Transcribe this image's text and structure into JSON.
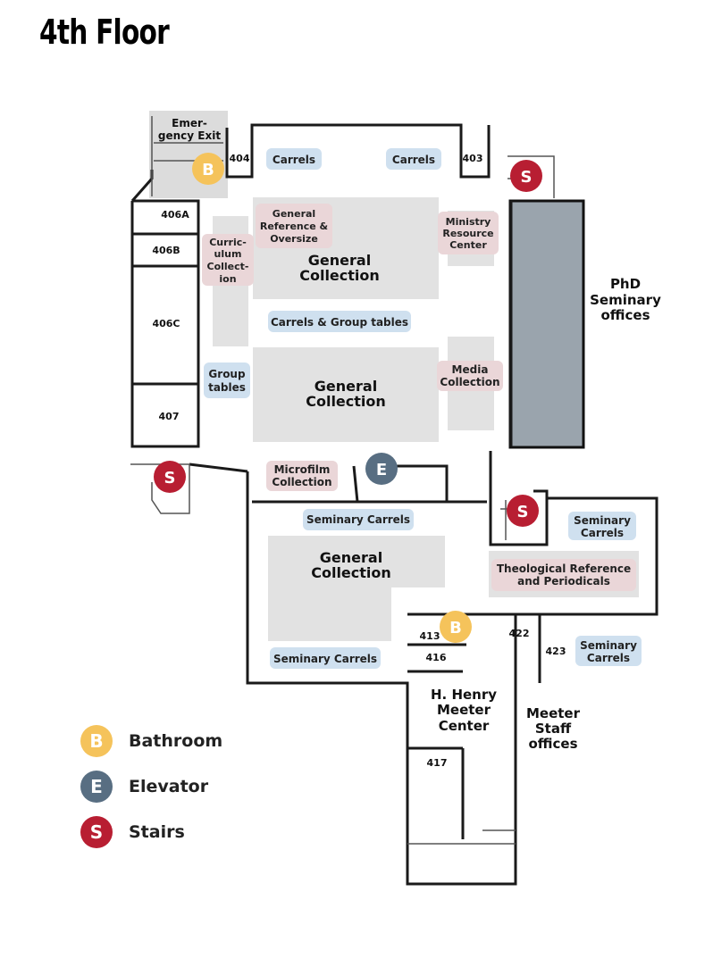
{
  "title": "4th Floor",
  "colors": {
    "bathroom": "#f5c35b",
    "elevator": "#586e82",
    "stairs": "#b81e32",
    "blue_label": "#cfe0ef",
    "pink_label": "#ead6d8",
    "collection_area": "#e2e2e2",
    "phd_block": "#9aa4ad"
  },
  "rooms": {
    "r404": "404",
    "r403": "403",
    "r406a": "406A",
    "r406b": "406B",
    "r406c": "406C",
    "r407": "407",
    "r413": "413",
    "r416": "416",
    "r417": "417",
    "r422": "422",
    "r423": "423"
  },
  "labels": {
    "emergency_exit": [
      "Emer-",
      "gency Exit"
    ],
    "carrels_left": "Carrels",
    "carrels_right": "Carrels",
    "general_reference": [
      "General",
      "Reference &",
      "Oversize"
    ],
    "ministry_resource": [
      "Ministry",
      "Resource",
      "Center"
    ],
    "curriculum": [
      "Curric-",
      "ulum",
      "Collect-",
      "ion"
    ],
    "general_collection_1": [
      "General",
      "Collection"
    ],
    "general_collection_2": [
      "General",
      "Collection"
    ],
    "general_collection_3": [
      "General",
      "Collection"
    ],
    "carrels_group_tables": "Carrels & Group tables",
    "group_tables": [
      "Group",
      "tables"
    ],
    "media_collection": [
      "Media",
      "Collection"
    ],
    "phd_seminary": [
      "PhD",
      "Seminary",
      "offices"
    ],
    "microfilm": [
      "Microfilm",
      "Collection"
    ],
    "seminary_carrels_top": "Seminary Carrels",
    "seminary_carrels_right1": [
      "Seminary",
      "Carrels"
    ],
    "theological_reference": [
      "Theological Reference",
      "and Periodicals"
    ],
    "seminary_carrels_bottom": "Seminary Carrels",
    "seminary_carrels_right2": [
      "Seminary",
      "Carrels"
    ],
    "meeter_center": [
      "H. Henry",
      "Meeter",
      "Center"
    ],
    "meeter_staff": [
      "Meeter",
      "Staff",
      "offices"
    ]
  },
  "markers": {
    "bathroom": "B",
    "elevator": "E",
    "stairs": "S"
  },
  "legend": [
    {
      "letter": "B",
      "label": "Bathroom",
      "color": "#f5c35b"
    },
    {
      "letter": "E",
      "label": "Elevator",
      "color": "#586e82"
    },
    {
      "letter": "S",
      "label": "Stairs",
      "color": "#b81e32"
    }
  ]
}
